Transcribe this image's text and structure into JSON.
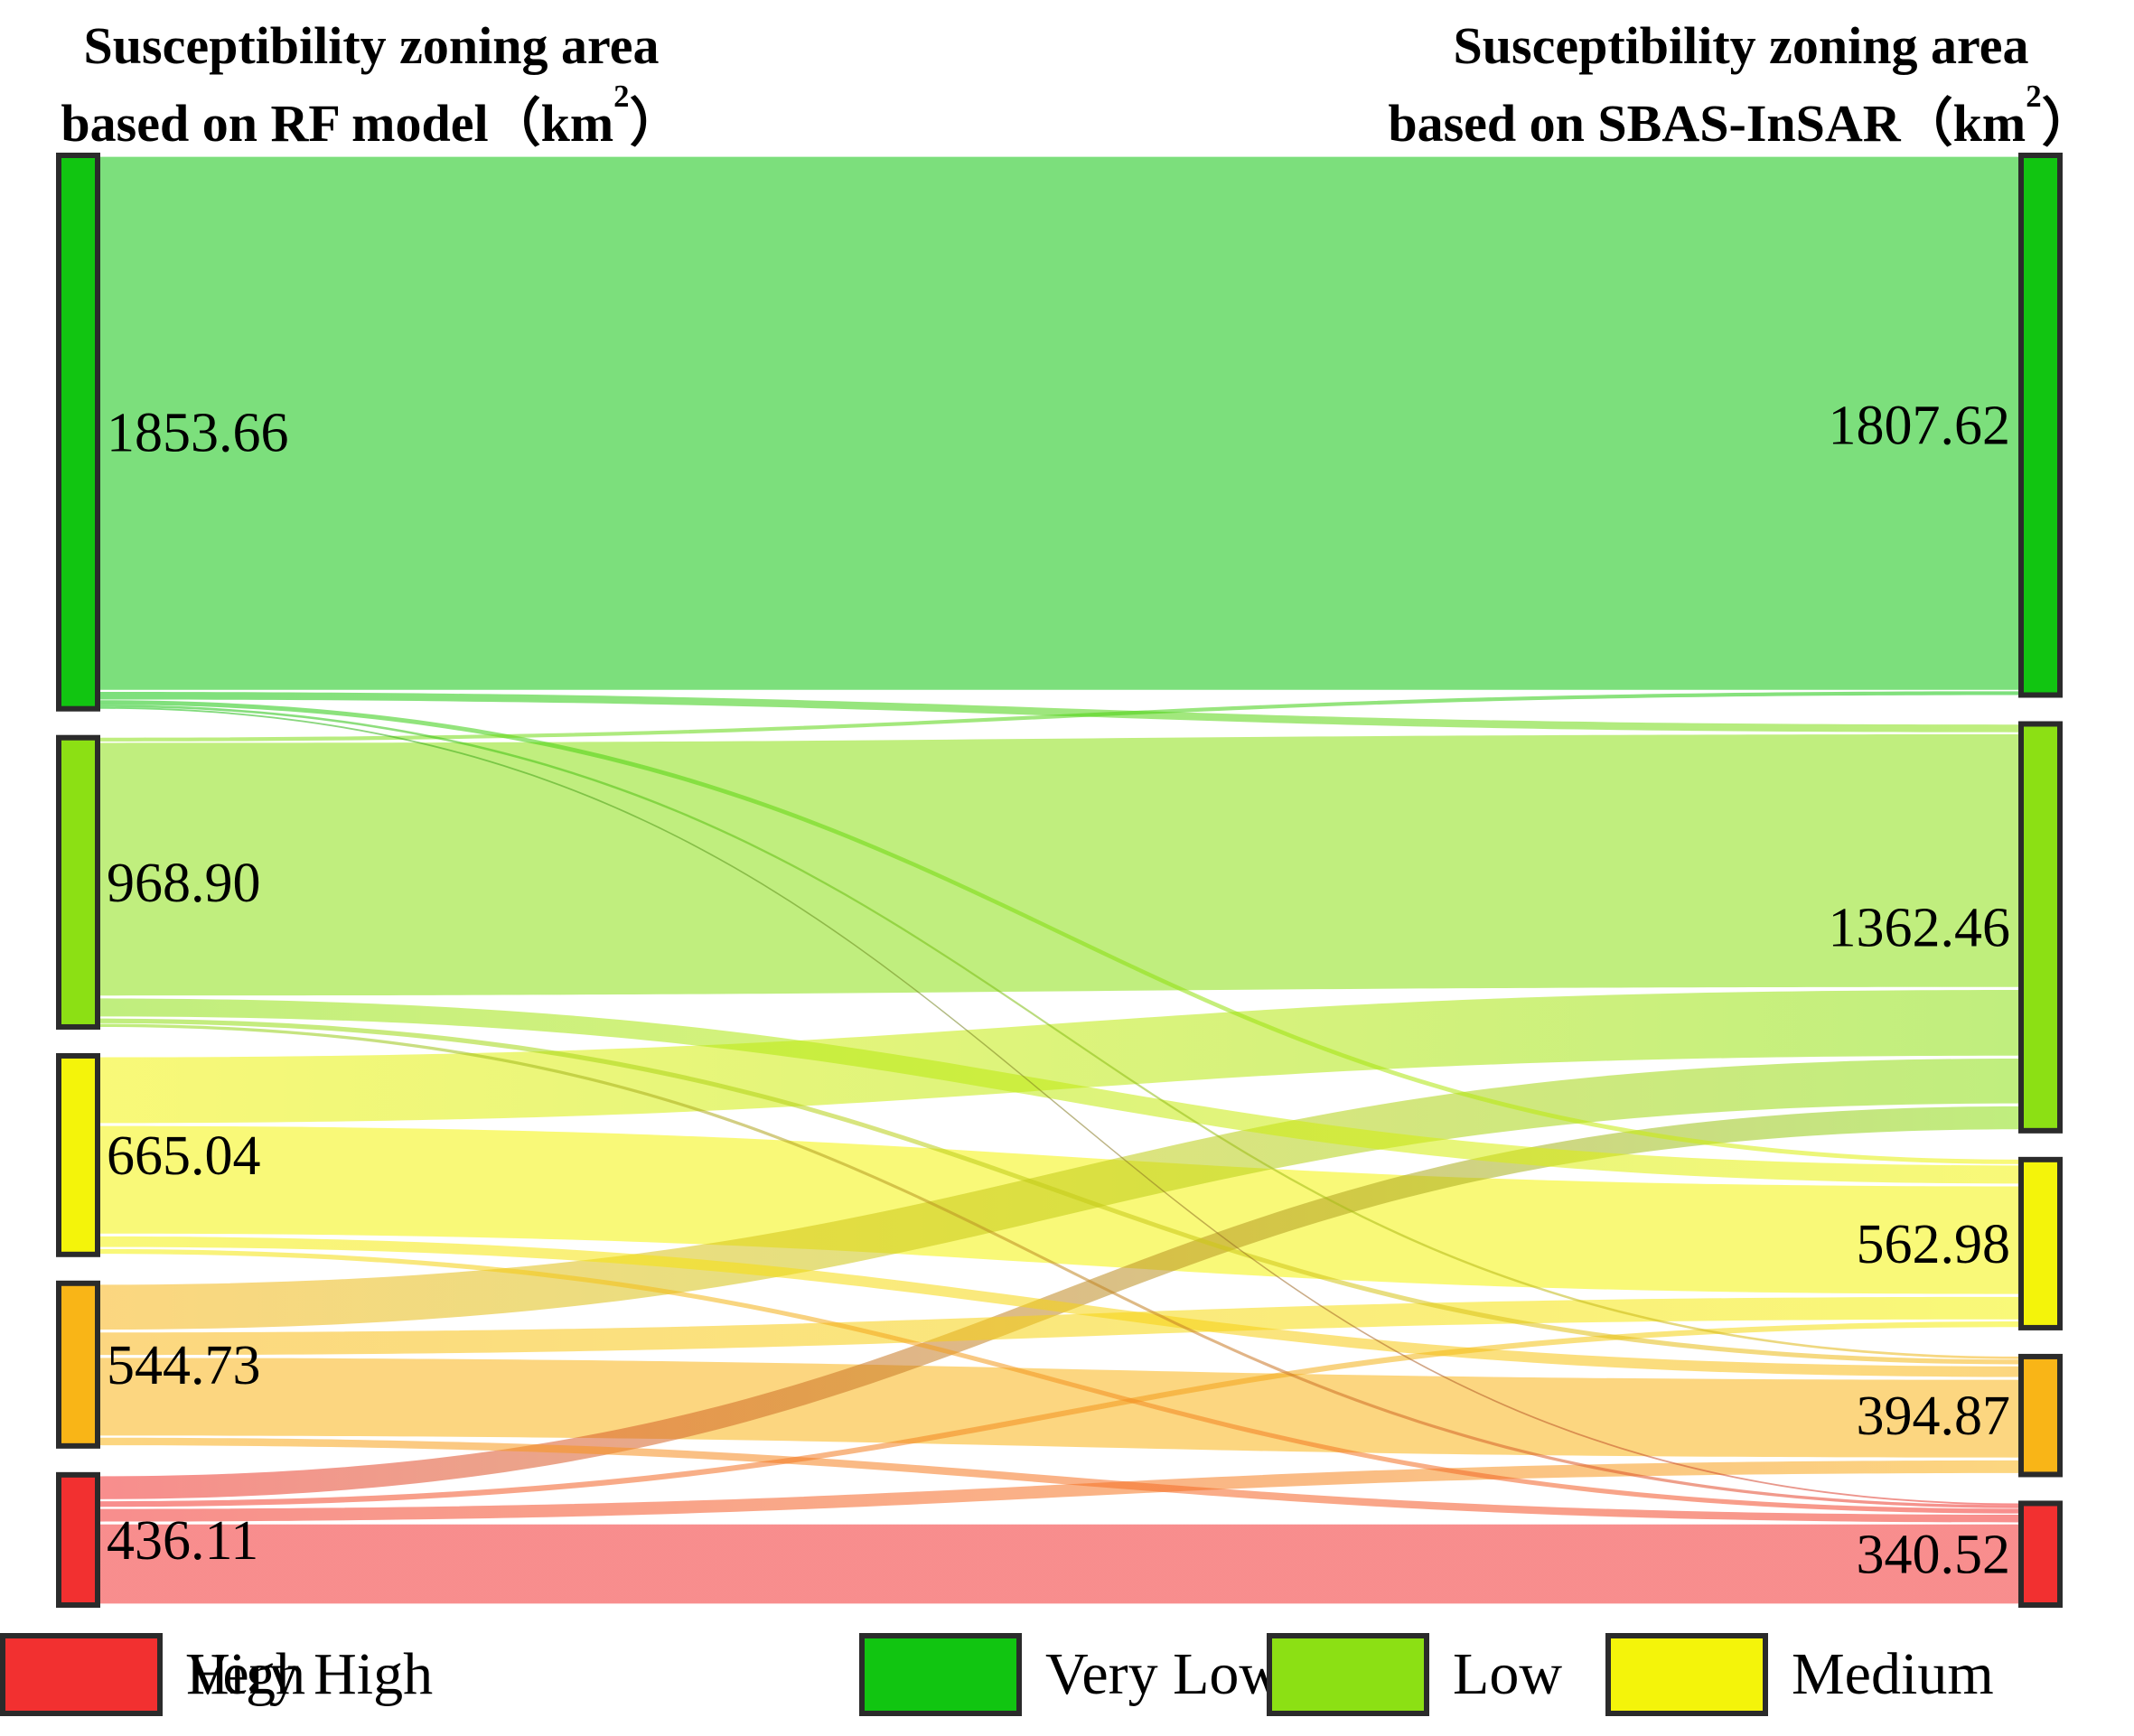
{
  "titles": {
    "left_line1": "Susceptibility zoning area",
    "left_line2_pre": "based on RF model（km",
    "left_line2_sup": "2",
    "left_line2_post": "）",
    "right_line1": "Susceptibility zoning area",
    "right_line2_pre": "based on SBAS-InSAR（km",
    "right_line2_sup": "2",
    "right_line2_post": "）"
  },
  "legend": {
    "items": [
      {
        "label": "Very Low",
        "color": "#11c511"
      },
      {
        "label": "Low",
        "color": "#8ce014"
      },
      {
        "label": "Medium",
        "color": "#f4f40a"
      },
      {
        "label": "High",
        "color": "#f9b517"
      },
      {
        "label": "Very High",
        "color": "#f23030"
      }
    ]
  },
  "chart_data": {
    "type": "sankey",
    "unit": "km2",
    "left_axis_title": "Susceptibility zoning area based on RF model (km2)",
    "right_axis_title": "Susceptibility zoning area based on SBAS-InSAR (km2)",
    "categories": [
      "Very Low",
      "Low",
      "Medium",
      "High",
      "Very High"
    ],
    "colors": {
      "Very Low": "#11c511",
      "Low": "#8ce014",
      "Medium": "#f4f40a",
      "High": "#f9b517",
      "Very High": "#f23030"
    },
    "node_border_color": "#2b2b2b",
    "flow_opacity": 0.55,
    "legend_position": "bottom",
    "left_nodes": [
      {
        "category": "Very Low",
        "value": 1853.66,
        "label": "1853.66"
      },
      {
        "category": "Low",
        "value": 968.9,
        "label": "968.90"
      },
      {
        "category": "Medium",
        "value": 665.04,
        "label": "665.04"
      },
      {
        "category": "High",
        "value": 544.73,
        "label": "544.73"
      },
      {
        "category": "Very High",
        "value": 436.11,
        "label": "436.11"
      }
    ],
    "right_nodes": [
      {
        "category": "Very Low",
        "value": 1807.62,
        "label": "1807.62"
      },
      {
        "category": "Low",
        "value": 1362.46,
        "label": "1362.46"
      },
      {
        "category": "Medium",
        "value": 562.98,
        "label": "562.98"
      },
      {
        "category": "High",
        "value": 394.87,
        "label": "394.87"
      },
      {
        "category": "Very High",
        "value": 340.52,
        "label": "340.52"
      }
    ],
    "flows": [
      {
        "from": "Very Low",
        "to": "Very Low",
        "value": 1795.0
      },
      {
        "from": "Very Low",
        "to": "Low",
        "value": 30.0
      },
      {
        "from": "Very Low",
        "to": "Medium",
        "value": 15.0
      },
      {
        "from": "Very Low",
        "to": "High",
        "value": 8.0
      },
      {
        "from": "Very Low",
        "to": "Very High",
        "value": 5.66
      },
      {
        "from": "Low",
        "to": "Very Low",
        "value": 12.62
      },
      {
        "from": "Low",
        "to": "Low",
        "value": 856.0
      },
      {
        "from": "Low",
        "to": "Medium",
        "value": 70.0
      },
      {
        "from": "Low",
        "to": "High",
        "value": 20.0
      },
      {
        "from": "Low",
        "to": "Very High",
        "value": 10.28
      },
      {
        "from": "Medium",
        "to": "Low",
        "value": 230.0
      },
      {
        "from": "Medium",
        "to": "Medium",
        "value": 370.0
      },
      {
        "from": "Medium",
        "to": "High",
        "value": 45.0
      },
      {
        "from": "Medium",
        "to": "Very High",
        "value": 20.04
      },
      {
        "from": "High",
        "to": "Low",
        "value": 160.0
      },
      {
        "from": "High",
        "to": "Medium",
        "value": 85.0
      },
      {
        "from": "High",
        "to": "High",
        "value": 270.0
      },
      {
        "from": "High",
        "to": "Very High",
        "value": 29.73
      },
      {
        "from": "Very High",
        "to": "Low",
        "value": 86.46
      },
      {
        "from": "Very High",
        "to": "Medium",
        "value": 22.98
      },
      {
        "from": "Very High",
        "to": "High",
        "value": 51.87
      },
      {
        "from": "Very High",
        "to": "Very High",
        "value": 274.81
      }
    ],
    "flows_note": "Node totals are printed on the figure; cross-category flow values are visual estimates from ribbon thickness, balanced so every row/column sums to the printed node totals."
  }
}
